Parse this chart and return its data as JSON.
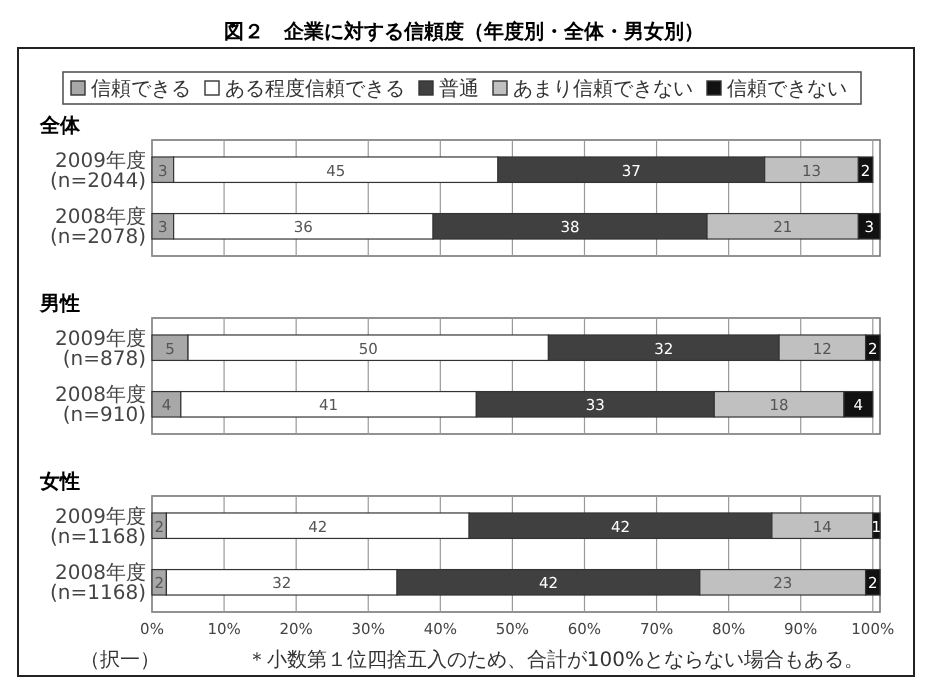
{
  "chart_data": [
    {
      "type": "bar",
      "title": "図２　企業に対する信頼度（年度別・全体・男女別）",
      "subtitle": "全体",
      "orientation": "horizontal",
      "stacked": true,
      "data_labels": true,
      "legend": "top",
      "grid": "x",
      "tick_labels": "y",
      "categories": [
        "2009年度 (n=2044)",
        "2008年度 (n=2078)"
      ],
      "xlim": [
        0,
        101
      ],
      "xticks": [
        {
          "value": 0,
          "label": null
        },
        {
          "value": 10,
          "label": null
        },
        {
          "value": 20,
          "label": null
        },
        {
          "value": 30,
          "label": null
        },
        {
          "value": 40,
          "label": null
        },
        {
          "value": 50,
          "label": null
        },
        {
          "value": 60,
          "label": null
        },
        {
          "value": 70,
          "label": null
        },
        {
          "value": 80,
          "label": null
        },
        {
          "value": 90,
          "label": null
        },
        {
          "value": 100,
          "label": null
        }
      ],
      "series": [
        {
          "name": "信頼できる",
          "color": "#a8a8a8",
          "values": [
            3,
            3
          ]
        },
        {
          "name": "ある程度信頼できる",
          "color": "#ffffff",
          "values": [
            45,
            36
          ]
        },
        {
          "name": "普通",
          "color": "#404040",
          "values": [
            37,
            38
          ]
        },
        {
          "name": "あまり信頼できない",
          "color": "#c0c0c0",
          "values": [
            13,
            21
          ]
        },
        {
          "name": "信頼できない",
          "color": "#111111",
          "values": [
            2,
            3
          ]
        }
      ]
    },
    {
      "type": "bar",
      "title": "男性",
      "orientation": "horizontal",
      "stacked": true,
      "data_labels": true,
      "grid": "x",
      "tick_labels": "y",
      "categories": [
        "2009年度 (n=878)",
        "2008年度 (n=910)"
      ],
      "xlim": [
        0,
        101
      ],
      "xticks": [
        {
          "value": 0,
          "label": null
        },
        {
          "value": 10,
          "label": null
        },
        {
          "value": 20,
          "label": null
        },
        {
          "value": 30,
          "label": null
        },
        {
          "value": 40,
          "label": null
        },
        {
          "value": 50,
          "label": null
        },
        {
          "value": 60,
          "label": null
        },
        {
          "value": 70,
          "label": null
        },
        {
          "value": 80,
          "label": null
        },
        {
          "value": 90,
          "label": null
        },
        {
          "value": 100,
          "label": null
        }
      ],
      "series": [
        {
          "color": "#a8a8a8",
          "values": [
            5,
            4
          ]
        },
        {
          "color": "#ffffff",
          "values": [
            50,
            41
          ]
        },
        {
          "color": "#404040",
          "values": [
            32,
            33
          ]
        },
        {
          "color": "#c0c0c0",
          "values": [
            12,
            18
          ]
        },
        {
          "color": "#111111",
          "values": [
            2,
            4
          ]
        }
      ]
    },
    {
      "type": "bar",
      "title": "女性",
      "orientation": "horizontal",
      "stacked": true,
      "data_labels": true,
      "grid": "x",
      "categories": [
        "2009年度 (n=1168)",
        "2008年度 (n=1168)"
      ],
      "xlim": [
        0,
        101
      ],
      "xticks": [
        {
          "value": 0,
          "label": "0%"
        },
        {
          "value": 10,
          "label": "10%"
        },
        {
          "value": 20,
          "label": "20%"
        },
        {
          "value": 30,
          "label": "30%"
        },
        {
          "value": 40,
          "label": "40%"
        },
        {
          "value": 50,
          "label": "50%"
        },
        {
          "value": 60,
          "label": "60%"
        },
        {
          "value": 70,
          "label": "70%"
        },
        {
          "value": 80,
          "label": "80%"
        },
        {
          "value": 90,
          "label": "90%"
        },
        {
          "value": 100,
          "label": "100%"
        }
      ],
      "annotations": [
        "（択一）",
        "＊小数第１位四捨五入のため、合計が100%とならない場合もある。"
      ],
      "series": [
        {
          "color": "#a8a8a8",
          "values": [
            2,
            2
          ]
        },
        {
          "color": "#ffffff",
          "values": [
            42,
            32
          ]
        },
        {
          "color": "#404040",
          "values": [
            42,
            42
          ]
        },
        {
          "color": "#c0c0c0",
          "values": [
            14,
            23
          ]
        },
        {
          "color": "#111111",
          "values": [
            1,
            2
          ]
        }
      ]
    }
  ]
}
